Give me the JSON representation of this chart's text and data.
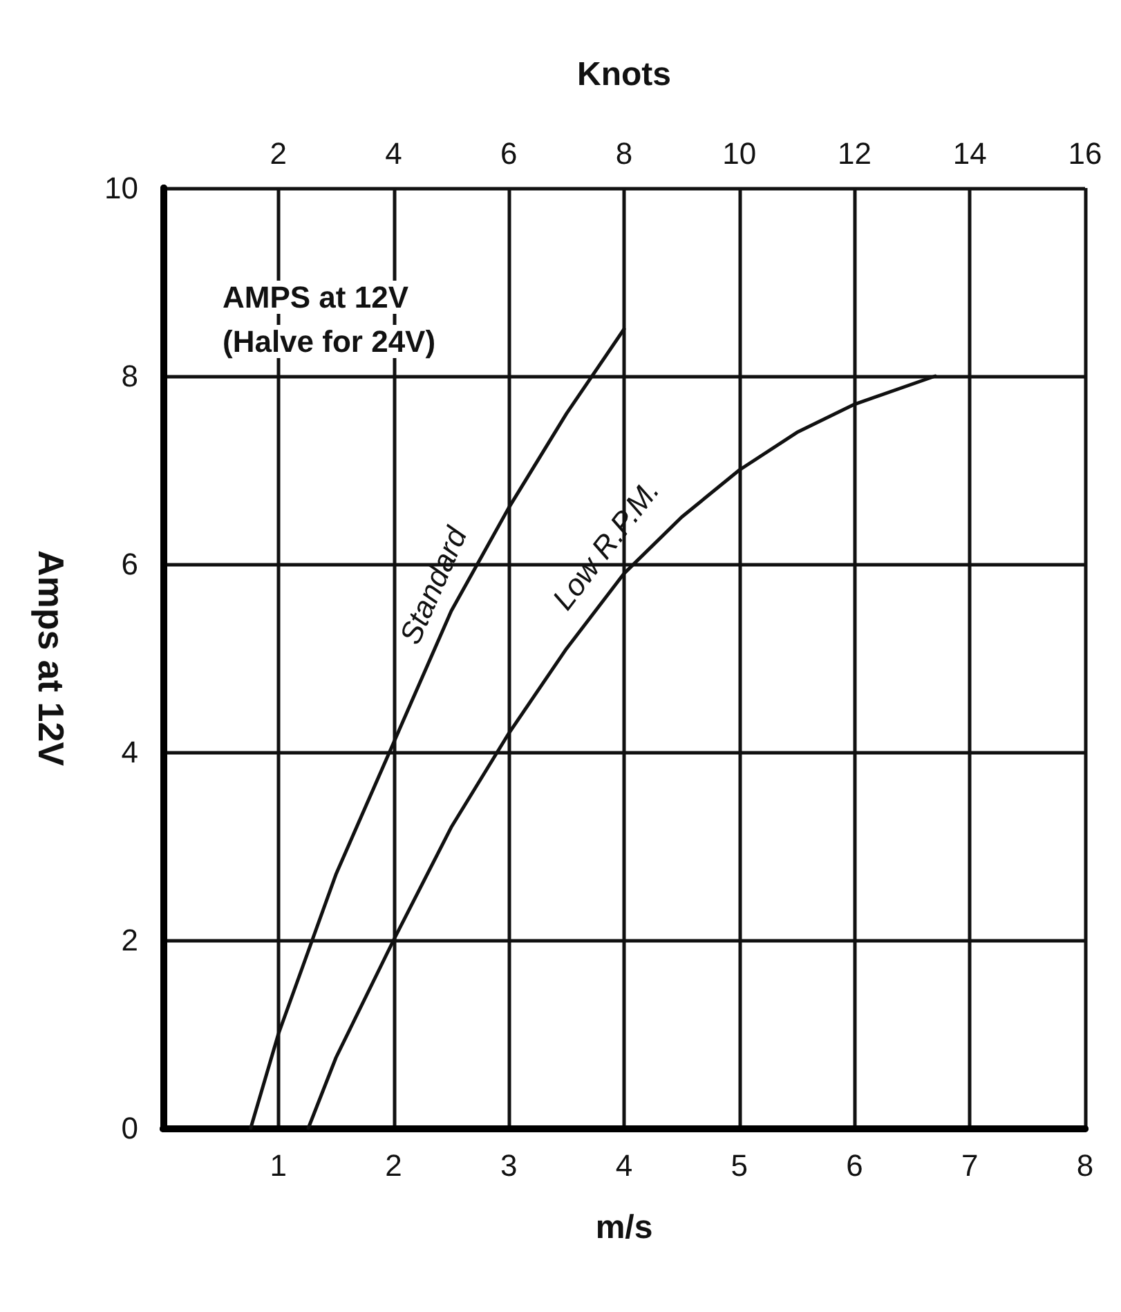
{
  "chart_data": {
    "type": "line",
    "xlabel": "m/s",
    "ylabel": "Amps at 12V",
    "x2label": "Knots",
    "xlim": [
      0,
      8
    ],
    "xticks": [
      1,
      2,
      3,
      4,
      5,
      6,
      7,
      8
    ],
    "x2lim": [
      0,
      16
    ],
    "x2ticks": [
      2,
      4,
      6,
      8,
      10,
      12,
      14,
      16
    ],
    "ylim": [
      0,
      10
    ],
    "yticks": [
      0,
      2,
      4,
      6,
      8,
      10
    ],
    "series": [
      {
        "name": "Standard",
        "color": "#111111",
        "x": [
          0.76,
          1,
          1.5,
          2,
          2.5,
          3,
          3.5,
          4
        ],
        "values": [
          0,
          1,
          2.7,
          4.1,
          5.5,
          6.6,
          7.6,
          8.5
        ]
      },
      {
        "name": "Low R.P.M.",
        "color": "#111111",
        "x": [
          1.26,
          1.5,
          2,
          2.5,
          3,
          3.5,
          4,
          4.5,
          5,
          5.5,
          6,
          6.7
        ],
        "values": [
          0,
          0.75,
          2,
          3.2,
          4.2,
          5.1,
          5.9,
          6.5,
          7,
          7.4,
          7.7,
          8
        ]
      }
    ],
    "annotations": [
      "AMPS at 12V",
      "(Halve for 24V)"
    ],
    "grid": true,
    "marker": "none",
    "line_style": "solid",
    "legend": false
  }
}
